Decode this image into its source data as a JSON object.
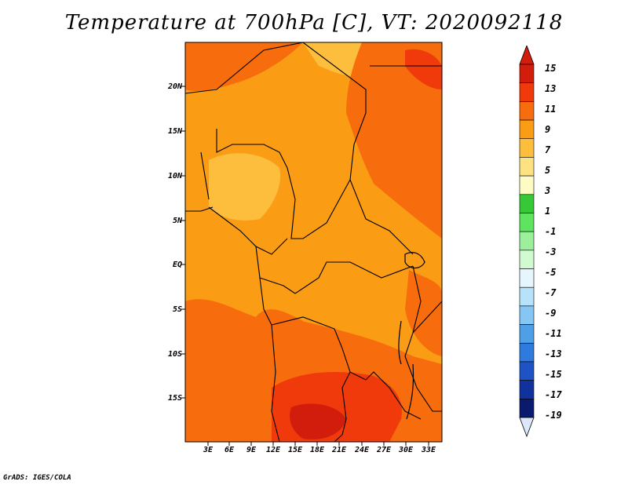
{
  "title": "Temperature at 700hPa [C], VT: 2020092118",
  "footer": "GrADS: IGES/COLA",
  "map": {
    "region": "Central and Southern Africa",
    "lat_labels": [
      "20N",
      "15N",
      "10N",
      "5N",
      "EQ",
      "5S",
      "10S",
      "15S"
    ],
    "lon_labels": [
      "3E",
      "6E",
      "9E",
      "12E",
      "15E",
      "18E",
      "21E",
      "24E",
      "27E",
      "30E",
      "33E"
    ]
  },
  "colorbar": {
    "labels": [
      "15",
      "13",
      "11",
      "9",
      "7",
      "5",
      "3",
      "1",
      "-1",
      "-3",
      "-5",
      "-7",
      "-9",
      "-11",
      "-13",
      "-15",
      "-17",
      "-19"
    ],
    "colors": [
      "#d21c0c",
      "#f03a0c",
      "#f76c0c",
      "#fa9c14",
      "#fcbe3c",
      "#fde284",
      "#fefcc4",
      "#37c837",
      "#5fe45f",
      "#9cf09c",
      "#d2fad2",
      "#e6f6fc",
      "#b8e2fa",
      "#86c6f4",
      "#4e9fe8",
      "#2f7ade",
      "#1d53c4",
      "#11329c",
      "#0a1a6e"
    ],
    "arrow_top_color": "#d21c0c",
    "arrow_bottom_color": "#dce8fa"
  },
  "palette": {
    "t9": "#fa9c14",
    "t11": "#f76c0c",
    "t13": "#f03a0c",
    "t15": "#d21c0c",
    "t7": "#fcbe3c"
  }
}
